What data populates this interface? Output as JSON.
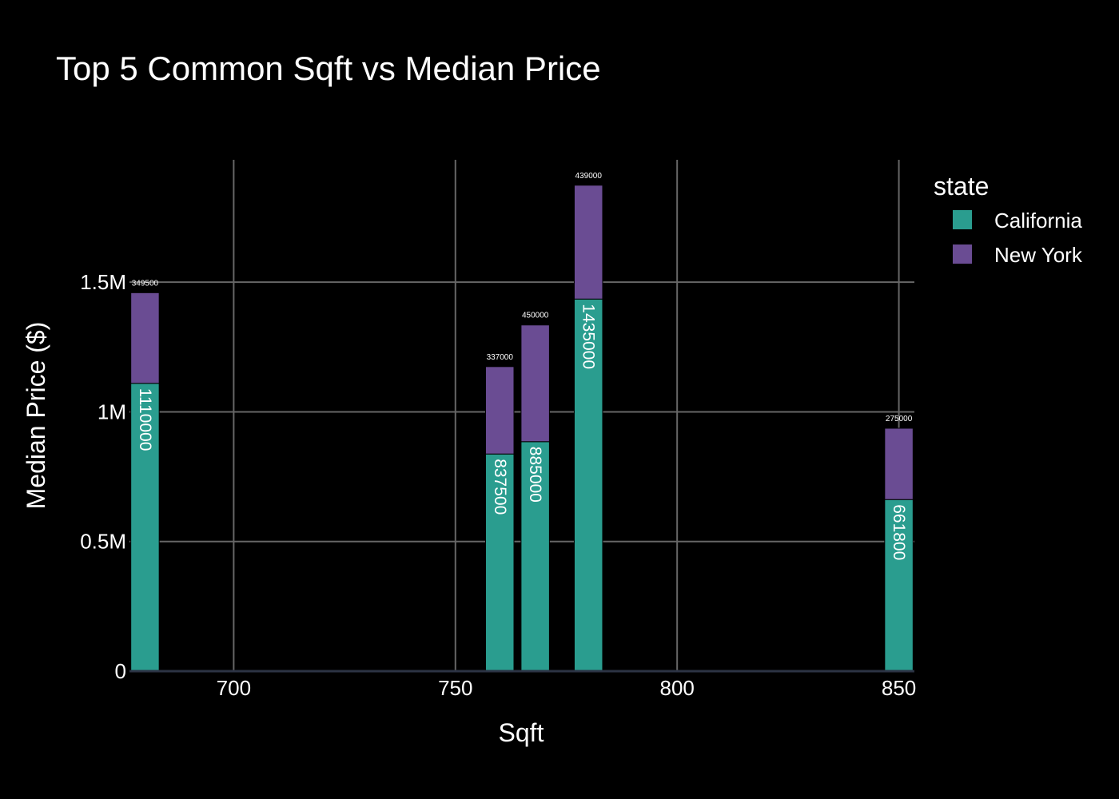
{
  "chart_data": {
    "type": "bar",
    "barmode": "stack",
    "title": "Top 5 Common Sqft vs Median Price",
    "xlabel": "Sqft",
    "ylabel": "Median Price ($)",
    "xlim": [
      676.5,
      853.5
    ],
    "ylim": [
      0,
      1972000
    ],
    "x_ticks": [
      700,
      750,
      800,
      850
    ],
    "x_tick_labels": [
      "700",
      "750",
      "800",
      "850"
    ],
    "y_ticks": [
      0,
      500000,
      1000000,
      1500000
    ],
    "y_tick_labels": [
      "0",
      "0.5M",
      "1M",
      "1.5M"
    ],
    "grid": true,
    "legend": {
      "title": "state",
      "position": "right"
    },
    "x": [
      680,
      760,
      768,
      780,
      850
    ],
    "bar_width": 6.4,
    "series": [
      {
        "name": "California",
        "color": "#2a9d8f",
        "values": [
          1110000,
          837500,
          885000,
          1435000,
          661800
        ],
        "labels": [
          "1110000",
          "837500",
          "885000",
          "1435000",
          "661800"
        ],
        "label_position": "inside"
      },
      {
        "name": "New York",
        "color": "#6a4c93",
        "values": [
          349500,
          337000,
          450000,
          439000,
          275000
        ],
        "labels": [
          "349500",
          "337000",
          "450000",
          "439000",
          "275000"
        ],
        "label_position": "outside"
      }
    ]
  },
  "colors": {
    "background": "#000000",
    "grid": "#666666",
    "text": "#ffffff",
    "zeroline": "#2c3344"
  }
}
